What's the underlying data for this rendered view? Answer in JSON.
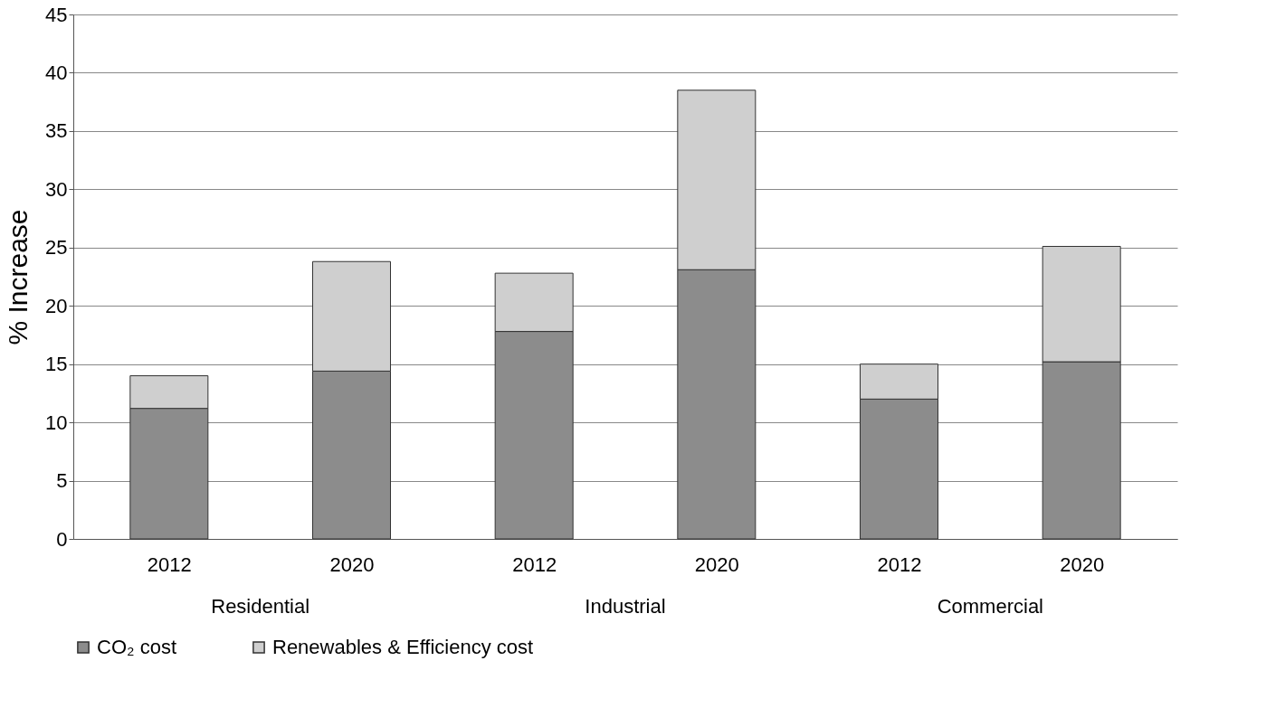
{
  "chart_data": {
    "type": "bar",
    "stacked": true,
    "ylabel": "% Increase",
    "categories": [
      "2012",
      "2020",
      "2012",
      "2020",
      "2012",
      "2020"
    ],
    "annotations": [
      "Residential",
      "Industrial",
      "Commercial"
    ],
    "series": [
      {
        "name": "CO₂ cost",
        "color": "#8c8c8c",
        "values": [
          11.2,
          14.4,
          17.8,
          23.1,
          12.0,
          15.2
        ]
      },
      {
        "name": "Renewables & Efficiency cost",
        "color": "#cfcfcf",
        "values": [
          2.8,
          9.4,
          5.0,
          15.4,
          3.0,
          9.9
        ]
      }
    ],
    "ylim": [
      0,
      45
    ],
    "yticks": [
      0,
      5,
      10,
      15,
      20,
      25,
      30,
      35,
      40,
      45
    ],
    "grid": "y",
    "legend": "bottom"
  }
}
